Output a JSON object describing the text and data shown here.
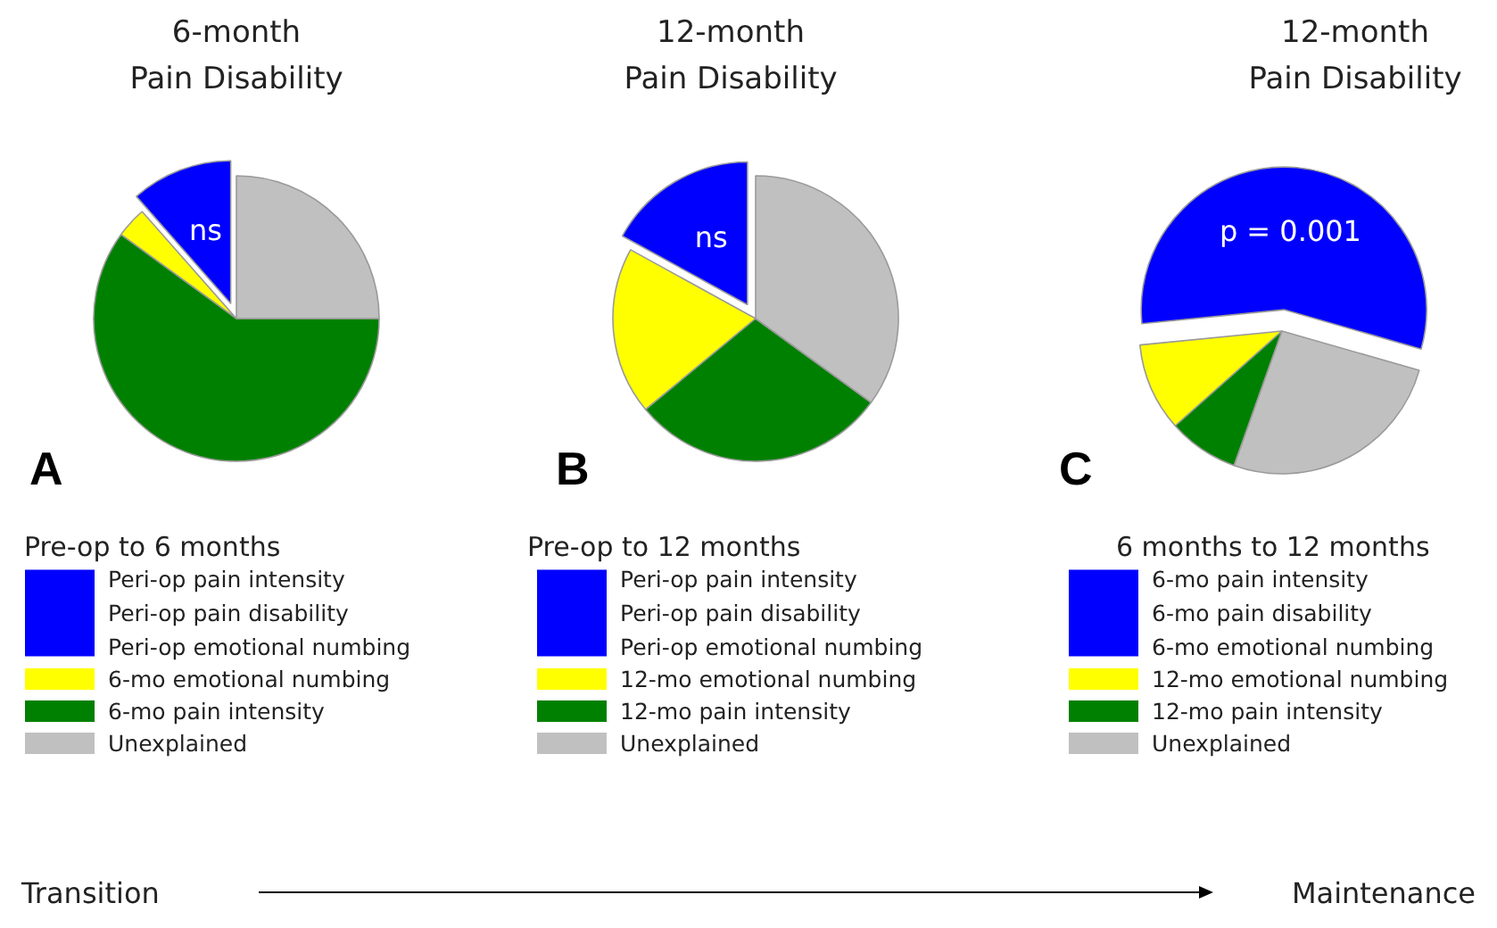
{
  "chart_data": [
    {
      "type": "pie",
      "title": "6-month\nPain Disability",
      "subtitle": "Pre-op to 6 months",
      "annotations": [
        "A",
        "ns"
      ],
      "categories": [
        "Peri-op pain intensity\nPeri-op pain disability\nPeri-op emotional numbing",
        "6-mo emotional numbing",
        "6-mo pain intensity",
        "Unexplained"
      ],
      "values": [
        11.5,
        3.5,
        60,
        25
      ],
      "colors": [
        "#0000ff",
        "#ffff00",
        "#008000",
        "#c0c0c0"
      ],
      "legend": "bottom"
    },
    {
      "type": "pie",
      "title": "12-month\nPain Disability",
      "subtitle": "Pre-op to 12 months",
      "annotations": [
        "B",
        "ns"
      ],
      "categories": [
        "Peri-op pain intensity\nPeri-op pain disability\nPeri-op emotional numbing",
        "12-mo emotional numbing",
        "12-mo pain intensity",
        "Unexplained"
      ],
      "values": [
        17,
        19,
        29,
        35
      ],
      "colors": [
        "#0000ff",
        "#ffff00",
        "#008000",
        "#c0c0c0"
      ],
      "legend": "bottom"
    },
    {
      "type": "pie",
      "title": "12-month\nPain Disability",
      "subtitle": "6 months to 12 months",
      "annotations": [
        "C",
        "p = 0.001"
      ],
      "categories": [
        "6-mo pain intensity\n6-mo pain disability\n6-mo emotional numbing",
        "12-mo emotional numbing",
        "12-mo pain intensity",
        "Unexplained"
      ],
      "values": [
        56,
        10,
        8,
        26
      ],
      "colors": [
        "#0000ff",
        "#ffff00",
        "#008000",
        "#c0c0c0"
      ],
      "legend": "bottom"
    },
    {
      "type": "other",
      "annotations": [
        "Transition",
        "Maintenance"
      ]
    }
  ]
}
